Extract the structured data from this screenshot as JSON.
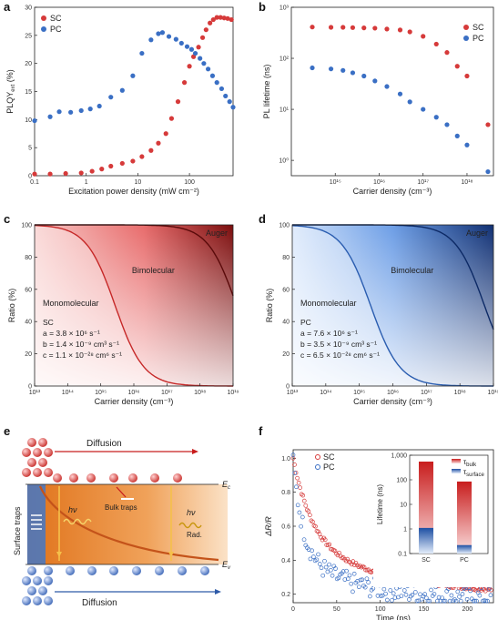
{
  "colors": {
    "sc": "#d63a3a",
    "pc": "#3a6fc4",
    "orange": "#e8892f",
    "dark_red": "#8b1010",
    "dark_blue": "#163e8a"
  },
  "panels": {
    "a": {
      "letter": "a",
      "legend": [
        "SC",
        "PC"
      ]
    },
    "b": {
      "letter": "b",
      "legend": [
        "SC",
        "PC"
      ]
    },
    "c": {
      "letter": "c",
      "labels": {
        "mono": "Monomolecular",
        "bi": "Bimolecular",
        "auger": "Auger"
      },
      "params": [
        "SC",
        "a = 3.8 × 10⁶ s⁻¹",
        "b = 1.4 × 10⁻⁹ cm³ s⁻¹",
        "c = 1.1 × 10⁻²⁸ cm⁶ s⁻¹"
      ]
    },
    "d": {
      "letter": "d",
      "labels": {
        "mono": "Monomolecular",
        "bi": "Bimolecular",
        "auger": "Auger"
      },
      "params": [
        "PC",
        "a = 7.6 × 10⁶ s⁻¹",
        "b = 3.5 × 10⁻⁹ cm³ s⁻¹",
        "c = 6.5 × 10⁻²⁸ cm⁶ s⁻¹"
      ]
    },
    "e": {
      "letter": "e",
      "top_label": "Diffusion",
      "bottom_label": "Diffusion",
      "surface_traps": "Surface traps",
      "bulk_traps": "Bulk traps",
      "hv_left": "hν",
      "hv_right": "hν",
      "rad": "Rad.",
      "ec": "E",
      "ec_sub": "c",
      "ev": "E",
      "ev_sub": "v"
    },
    "f": {
      "letter": "f",
      "legend": [
        "SC",
        "PC"
      ],
      "inset_ylabel": "Lifetime (ns)",
      "inset_legend_bulk": "τ",
      "inset_legend_bulk_sub": "bulk",
      "inset_legend_surface": "τ",
      "inset_legend_surface_sub": "surface"
    }
  },
  "chart_data": [
    {
      "panel": "a",
      "type": "scatter",
      "xlabel": "Excitation power density (mW cm⁻²)",
      "ylabel": "PLQY",
      "ylabel_sub": "ext",
      "ylabel_suffix": " (%)",
      "xscale": "log",
      "xlim": [
        0.1,
        700
      ],
      "ylim": [
        0,
        30
      ],
      "xticks": [
        0.1,
        1,
        10,
        100
      ],
      "xticklabels": [
        "0.1",
        "1",
        "10",
        "100"
      ],
      "yticks": [
        0,
        5,
        10,
        15,
        20,
        25,
        30
      ],
      "series": [
        {
          "name": "SC",
          "color": "#d63a3a",
          "x": [
            0.1,
            0.2,
            0.4,
            0.8,
            1.3,
            2,
            3,
            5,
            8,
            12,
            18,
            25,
            35,
            45,
            60,
            80,
            100,
            120,
            150,
            180,
            210,
            250,
            290,
            340,
            400,
            470,
            550,
            650
          ],
          "y": [
            0.3,
            0.3,
            0.4,
            0.5,
            0.8,
            1.2,
            1.7,
            2.2,
            2.6,
            3.4,
            4.5,
            5.8,
            7.5,
            10.2,
            13.2,
            16.6,
            19.5,
            21.2,
            22.9,
            24.6,
            26,
            27.2,
            27.8,
            28.2,
            28.2,
            28.1,
            28,
            27.8
          ]
        },
        {
          "name": "PC",
          "color": "#3a6fc4",
          "x": [
            0.1,
            0.2,
            0.3,
            0.5,
            0.8,
            1.2,
            1.8,
            3,
            5,
            8,
            12,
            18,
            25,
            30,
            40,
            55,
            70,
            90,
            110,
            130,
            160,
            190,
            230,
            280,
            340,
            420,
            500,
            600,
            700
          ],
          "y": [
            9.8,
            10.5,
            11.4,
            11.3,
            11.6,
            11.9,
            12.4,
            14,
            15.2,
            17.8,
            21.8,
            24.2,
            25.3,
            25.5,
            24.8,
            24.3,
            23.6,
            23,
            22.5,
            21.8,
            20.9,
            20,
            19,
            17.8,
            16.6,
            15.5,
            14.2,
            13.2,
            12.2
          ]
        }
      ]
    },
    {
      "panel": "b",
      "type": "scatter",
      "xlabel": "Carrier density (cm⁻³)",
      "ylabel": "PL lifetime (ns)",
      "xscale": "log",
      "yscale": "log",
      "xlim": [
        100000000000000.0,
        4e+18
      ],
      "ylim": [
        0.5,
        1000
      ],
      "xticks": [
        1000000000000000.0,
        1e+16,
        1e+17,
        1e+18
      ],
      "xticklabels": [
        "10¹⁵",
        "10¹⁶",
        "10¹⁷",
        "10¹⁸"
      ],
      "yticks": [
        1,
        10,
        100,
        1000
      ],
      "yticklabels": [
        "10⁰",
        "10¹",
        "10²",
        "10³"
      ],
      "series": [
        {
          "name": "SC",
          "color": "#d63a3a",
          "x": [
            300000000000000.0,
            800000000000000.0,
            1500000000000000.0,
            2500000000000000.0,
            4500000000000000.0,
            8000000000000000.0,
            1.5e+16,
            3e+16,
            5e+16,
            1e+17,
            2e+17,
            3.5e+17,
            6e+17,
            1e+18,
            3e+18
          ],
          "y": [
            410,
            405,
            405,
            400,
            395,
            390,
            375,
            360,
            330,
            270,
            190,
            130,
            70,
            45,
            5
          ]
        },
        {
          "name": "PC",
          "color": "#3a6fc4",
          "x": [
            300000000000000.0,
            800000000000000.0,
            1500000000000000.0,
            2500000000000000.0,
            4500000000000000.0,
            8000000000000000.0,
            1.5e+16,
            3e+16,
            5e+16,
            1e+17,
            2e+17,
            3.5e+17,
            6e+17,
            1e+18,
            3e+18
          ],
          "y": [
            65,
            62,
            58,
            52,
            45,
            36,
            28,
            20,
            14,
            10,
            7,
            5,
            3,
            2,
            0.6
          ]
        }
      ]
    },
    {
      "panel": "c",
      "type": "area",
      "xlabel": "Carrier density (cm⁻³)",
      "ylabel": "Ratio (%)",
      "xscale": "log",
      "xlim": [
        10000000000000.0,
        1e+19
      ],
      "ylim": [
        0,
        100
      ],
      "xticks": [
        10000000000000.0,
        100000000000000.0,
        1000000000000000.0,
        1e+16,
        1e+17,
        1e+18,
        1e+19
      ],
      "xticklabels": [
        "10¹³",
        "10¹⁴",
        "10¹⁵",
        "10¹⁶",
        "10¹⁷",
        "10¹⁸",
        "10¹⁹"
      ],
      "yticks": [
        0,
        20,
        40,
        60,
        80,
        100
      ],
      "params": {
        "a": 3800000.0,
        "b": 1.4e-09,
        "c": 1.1e-28
      }
    },
    {
      "panel": "d",
      "type": "area",
      "xlabel": "Carrier density (cm⁻³)",
      "ylabel": "Ratio (%)",
      "xscale": "log",
      "xlim": [
        10000000000000.0,
        1e+19
      ],
      "ylim": [
        0,
        100
      ],
      "xticks": [
        10000000000000.0,
        100000000000000.0,
        1000000000000000.0,
        1e+16,
        1e+17,
        1e+18,
        1e+19
      ],
      "xticklabels": [
        "10¹³",
        "10¹⁴",
        "10¹⁵",
        "10¹⁶",
        "10¹⁷",
        "10¹⁸",
        "10¹⁹"
      ],
      "yticks": [
        0,
        20,
        40,
        60,
        80,
        100
      ],
      "params": {
        "a": 7600000.0,
        "b": 3.5e-09,
        "c": 6.5e-28
      }
    },
    {
      "panel": "f",
      "type": "scatter",
      "xlabel": "Time (ps)",
      "ylabel": "ΔR/R",
      "xlim": [
        0,
        230
      ],
      "ylim": [
        0.15,
        1.05
      ],
      "xticks": [
        0,
        50,
        100,
        150,
        200
      ],
      "yticks": [
        0.2,
        0.4,
        0.6,
        0.8,
        1.0
      ],
      "yticklabels": [
        "0.2",
        "0.4",
        "0.6",
        "0.8",
        "1.0"
      ],
      "series": [
        {
          "name": "SC",
          "color": "#d63a3a",
          "decay": {
            "a1": 0.5,
            "t1": 22,
            "a2": 0.32,
            "t2": 120,
            "offset": 0.18
          }
        },
        {
          "name": "PC",
          "color": "#3a6fc4",
          "decay": {
            "a1": 0.55,
            "t1": 12,
            "a2": 0.25,
            "t2": 70,
            "offset": 0.17
          }
        }
      ],
      "inset": {
        "type": "bar",
        "yscale": "log",
        "ylim": [
          0.1,
          1000
        ],
        "yticks": [
          0.1,
          1,
          10,
          100,
          1000
        ],
        "yticklabels": [
          "0.1",
          "1",
          "10",
          "100",
          "1,000"
        ],
        "categories": [
          "SC",
          "PC"
        ],
        "series": [
          {
            "name": "τbulk",
            "values": [
              550,
              85
            ]
          },
          {
            "name": "τsurface",
            "values": [
              1.1,
              0.22
            ]
          }
        ]
      }
    }
  ]
}
